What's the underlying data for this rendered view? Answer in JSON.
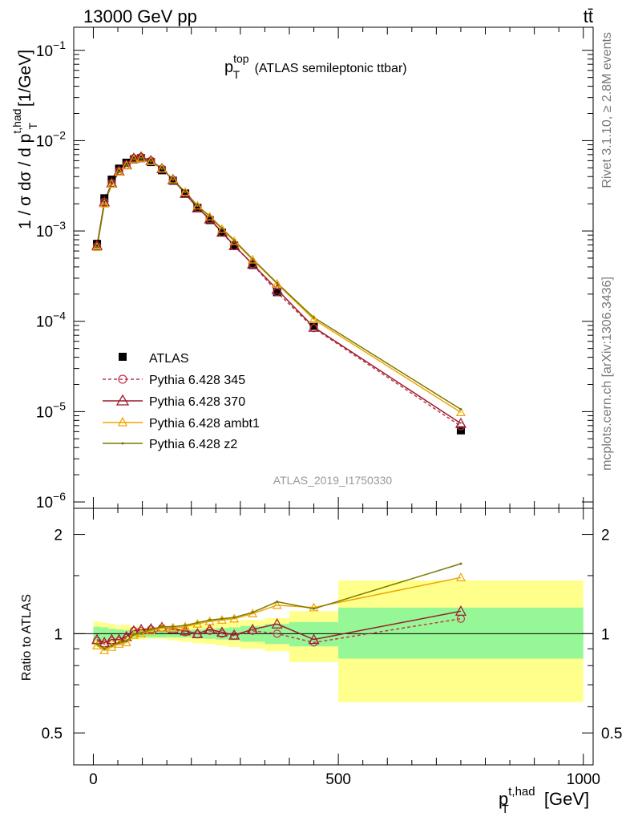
{
  "header": {
    "process": "13000 GeV pp",
    "channel": "tt̄",
    "rivet_label": "Rivet 3.1.10, ≥ 2.8M events",
    "mcplots_label": "mcplots.cern.ch [arXiv:1306.3436]",
    "analysis_id": "ATLAS_2019_I1750330"
  },
  "chart_data": [
    {
      "type": "line",
      "panel": "main",
      "title_main": "p",
      "title_sup": "top",
      "title_sub": "T",
      "title_rest": " (ATLAS semileptonic ttbar)",
      "ylabel": "1 / σ dσ / d p",
      "ylabel_sup": "t,had",
      "ylabel_sub": "T",
      "ylabel_unit": " [1/GeV]",
      "yscale": "log",
      "ylim": [
        8.5e-07,
        0.18
      ],
      "xlim": [
        -40,
        1020
      ],
      "ytick_labels": [
        {
          "base": "10",
          "exp": "−6",
          "value": 1e-06
        },
        {
          "base": "10",
          "exp": "−5",
          "value": 1e-05
        },
        {
          "base": "10",
          "exp": "−4",
          "value": 0.0001
        },
        {
          "base": "10",
          "exp": "−3",
          "value": 0.001
        },
        {
          "base": "10",
          "exp": "−2",
          "value": 0.01
        },
        {
          "base": "10",
          "exp": "−1",
          "value": 0.1
        }
      ],
      "x": [
        7.5,
        22.5,
        37.5,
        52.5,
        67.5,
        82.5,
        97.5,
        117.5,
        140,
        162.5,
        187.5,
        212.5,
        237.5,
        262.5,
        287.5,
        325,
        375,
        450,
        750
      ],
      "data": {
        "name": "ATLAS",
        "values": [
          0.00072,
          0.0023,
          0.0037,
          0.0049,
          0.0057,
          0.0062,
          0.0064,
          0.0058,
          0.0047,
          0.0036,
          0.0026,
          0.0018,
          0.00132,
          0.00096,
          0.00069,
          0.00042,
          0.00021,
          8.9e-05,
          6.2e-06
        ]
      },
      "series": [
        {
          "name": "Pythia 6.428 345",
          "color": "#c0394f",
          "values": [
            0.00068,
            0.0021,
            0.0034,
            0.0046,
            0.0054,
            0.0064,
            0.0066,
            0.006,
            0.0049,
            0.0037,
            0.0026,
            0.0018,
            0.00135,
            0.00096,
            0.00068,
            0.00043,
            0.00021,
            8.4e-05,
            6.9e-06
          ]
        },
        {
          "name": "Pythia 6.428 370",
          "color": "#9b1c2e",
          "values": [
            0.00069,
            0.0021,
            0.0034,
            0.0046,
            0.0054,
            0.0064,
            0.0066,
            0.006,
            0.0049,
            0.0037,
            0.0026,
            0.0018,
            0.00136,
            0.00097,
            0.00069,
            0.00043,
            0.000225,
            8.6e-05,
            7.4e-06
          ]
        },
        {
          "name": "Pythia 6.428 ambt1",
          "color": "#f2a500",
          "values": [
            0.00066,
            0.002,
            0.0033,
            0.0045,
            0.0053,
            0.0062,
            0.0064,
            0.0059,
            0.0049,
            0.0037,
            0.0027,
            0.0019,
            0.00144,
            0.00105,
            0.00077,
            0.00048,
            0.00026,
            0.000105,
            9.8e-06
          ]
        },
        {
          "name": "Pythia 6.428 z2",
          "color": "#7a7a00",
          "values": [
            0.00066,
            0.002,
            0.0033,
            0.0045,
            0.0053,
            0.0062,
            0.0064,
            0.0059,
            0.0049,
            0.0037,
            0.0027,
            0.0019,
            0.00146,
            0.00107,
            0.00079,
            0.00049,
            0.000265,
            0.00011,
            1.06e-05
          ]
        }
      ],
      "legend_position": "lower-left"
    },
    {
      "type": "line",
      "panel": "ratio",
      "ylabel": "Ratio to ATLAS",
      "xlabel": "p",
      "xlabel_sup": "t,had",
      "xlabel_sub": "T",
      "xlabel_unit": " [GeV]",
      "yscale": "log",
      "ylim": [
        0.4,
        2.4
      ],
      "xlim": [
        -40,
        1020
      ],
      "ytick_labels": [
        {
          "label": "0.5",
          "value": 0.5
        },
        {
          "label": "1",
          "value": 1
        },
        {
          "label": "2",
          "value": 2
        }
      ],
      "xtick_labels": [
        {
          "label": "0",
          "value": 0
        },
        {
          "label": "500",
          "value": 500
        },
        {
          "label": "1000",
          "value": 1000
        }
      ],
      "bin_edges": [
        0,
        15,
        30,
        45,
        60,
        75,
        90,
        105,
        130,
        150,
        175,
        200,
        225,
        250,
        275,
        300,
        350,
        400,
        500,
        1000
      ],
      "band_stat": [
        [
          0.95,
          1.05
        ],
        [
          0.955,
          1.045
        ],
        [
          0.965,
          1.035
        ],
        [
          0.97,
          1.03
        ],
        [
          0.975,
          1.025
        ],
        [
          0.975,
          1.025
        ],
        [
          0.975,
          1.025
        ],
        [
          0.975,
          1.025
        ],
        [
          0.975,
          1.025
        ],
        [
          0.975,
          1.025
        ],
        [
          0.975,
          1.025
        ],
        [
          0.97,
          1.03
        ],
        [
          0.965,
          1.035
        ],
        [
          0.96,
          1.04
        ],
        [
          0.955,
          1.045
        ],
        [
          0.945,
          1.055
        ],
        [
          0.93,
          1.07
        ],
        [
          0.915,
          1.085
        ],
        [
          0.84,
          1.2
        ]
      ],
      "band_syst": [
        [
          0.91,
          1.09
        ],
        [
          0.93,
          1.08
        ],
        [
          0.94,
          1.07
        ],
        [
          0.945,
          1.06
        ],
        [
          0.95,
          1.065
        ],
        [
          0.96,
          1.05
        ],
        [
          0.96,
          1.045
        ],
        [
          0.965,
          1.04
        ],
        [
          0.965,
          1.04
        ],
        [
          0.955,
          1.045
        ],
        [
          0.945,
          1.055
        ],
        [
          0.935,
          1.065
        ],
        [
          0.93,
          1.07
        ],
        [
          0.92,
          1.08
        ],
        [
          0.91,
          1.09
        ],
        [
          0.9,
          1.1
        ],
        [
          0.885,
          1.115
        ],
        [
          0.82,
          1.17
        ],
        [
          0.62,
          1.45
        ]
      ],
      "x": [
        7.5,
        22.5,
        37.5,
        52.5,
        67.5,
        82.5,
        97.5,
        117.5,
        140,
        162.5,
        187.5,
        212.5,
        237.5,
        262.5,
        287.5,
        325,
        375,
        450,
        750
      ],
      "series": [
        {
          "name": "Pythia 6.428 345",
          "color": "#c0394f",
          "values": [
            0.95,
            0.93,
            0.95,
            0.95,
            0.97,
            1.02,
            1.02,
            1.03,
            1.04,
            1.03,
            1.01,
            0.995,
            1.02,
            1.0,
            0.985,
            1.02,
            1.0,
            0.94,
            1.11
          ]
        },
        {
          "name": "Pythia 6.428 370",
          "color": "#9b1c2e",
          "values": [
            0.96,
            0.94,
            0.96,
            0.96,
            0.98,
            1.02,
            1.03,
            1.035,
            1.045,
            1.035,
            1.02,
            1.0,
            1.03,
            1.01,
            0.99,
            1.03,
            1.07,
            0.96,
            1.17
          ]
        },
        {
          "name": "Pythia 6.428 ambt1",
          "color": "#f2a500",
          "values": [
            0.92,
            0.89,
            0.91,
            0.93,
            0.94,
            0.99,
            1.0,
            1.02,
            1.04,
            1.04,
            1.05,
            1.07,
            1.09,
            1.1,
            1.11,
            1.15,
            1.22,
            1.2,
            1.48
          ]
        },
        {
          "name": "Pythia 6.428 z2",
          "color": "#7a7a00",
          "values": [
            0.93,
            0.9,
            0.92,
            0.94,
            0.95,
            0.995,
            1.005,
            1.03,
            1.05,
            1.05,
            1.06,
            1.08,
            1.1,
            1.11,
            1.12,
            1.16,
            1.25,
            1.19,
            1.63
          ]
        }
      ]
    }
  ]
}
